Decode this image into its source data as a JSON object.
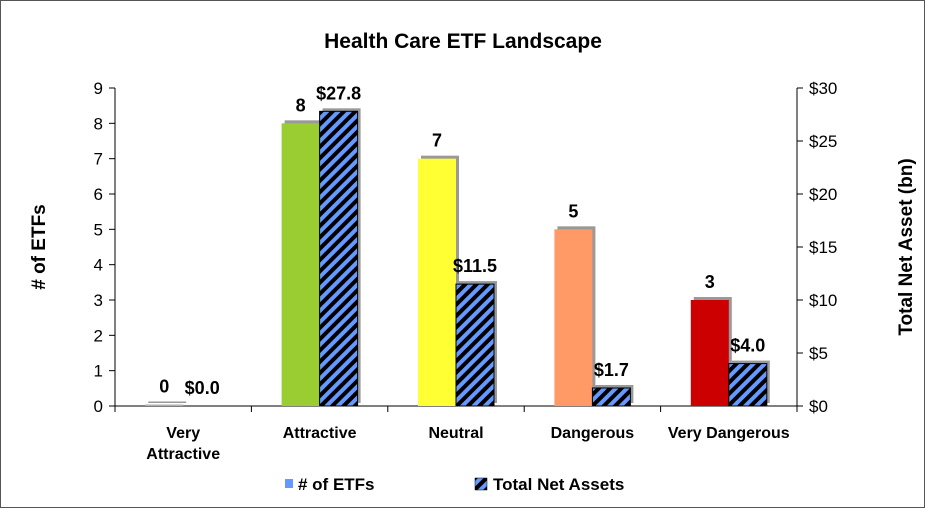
{
  "chart_data": {
    "type": "bar",
    "title": "Health Care ETF Landscape",
    "categories": [
      "Very Attractive",
      "Attractive",
      "Neutral",
      "Dangerous",
      "Very Dangerous"
    ],
    "series": [
      {
        "name": "# of ETFs",
        "axis": "left",
        "values": [
          0,
          8,
          7,
          5,
          3
        ],
        "labels": [
          "0",
          "8",
          "7",
          "5",
          "3"
        ],
        "colors": [
          "#b0b0b0",
          "#9ACD32",
          "#FFFF33",
          "#FF9966",
          "#CC0000"
        ],
        "legend_color": "#6699FF"
      },
      {
        "name": "Total Net Assets",
        "axis": "right",
        "values": [
          0.0,
          27.8,
          11.5,
          1.7,
          4.0
        ],
        "labels": [
          "$0.0",
          "$27.8",
          "$11.5",
          "$1.7",
          "$4.0"
        ],
        "fill": "#6699FF",
        "hatch": "#000000"
      }
    ],
    "y_left": {
      "label": "# of ETFs",
      "min": 0,
      "max": 9,
      "ticks": [
        "0",
        "1",
        "2",
        "3",
        "4",
        "5",
        "6",
        "7",
        "8",
        "9"
      ]
    },
    "y_right": {
      "label": "Total Net Asset (bn)",
      "min": 0,
      "max": 30,
      "ticks": [
        "$0",
        "$5",
        "$10",
        "$15",
        "$20",
        "$25",
        "$30"
      ]
    },
    "grid": false,
    "legend_position": "bottom"
  }
}
